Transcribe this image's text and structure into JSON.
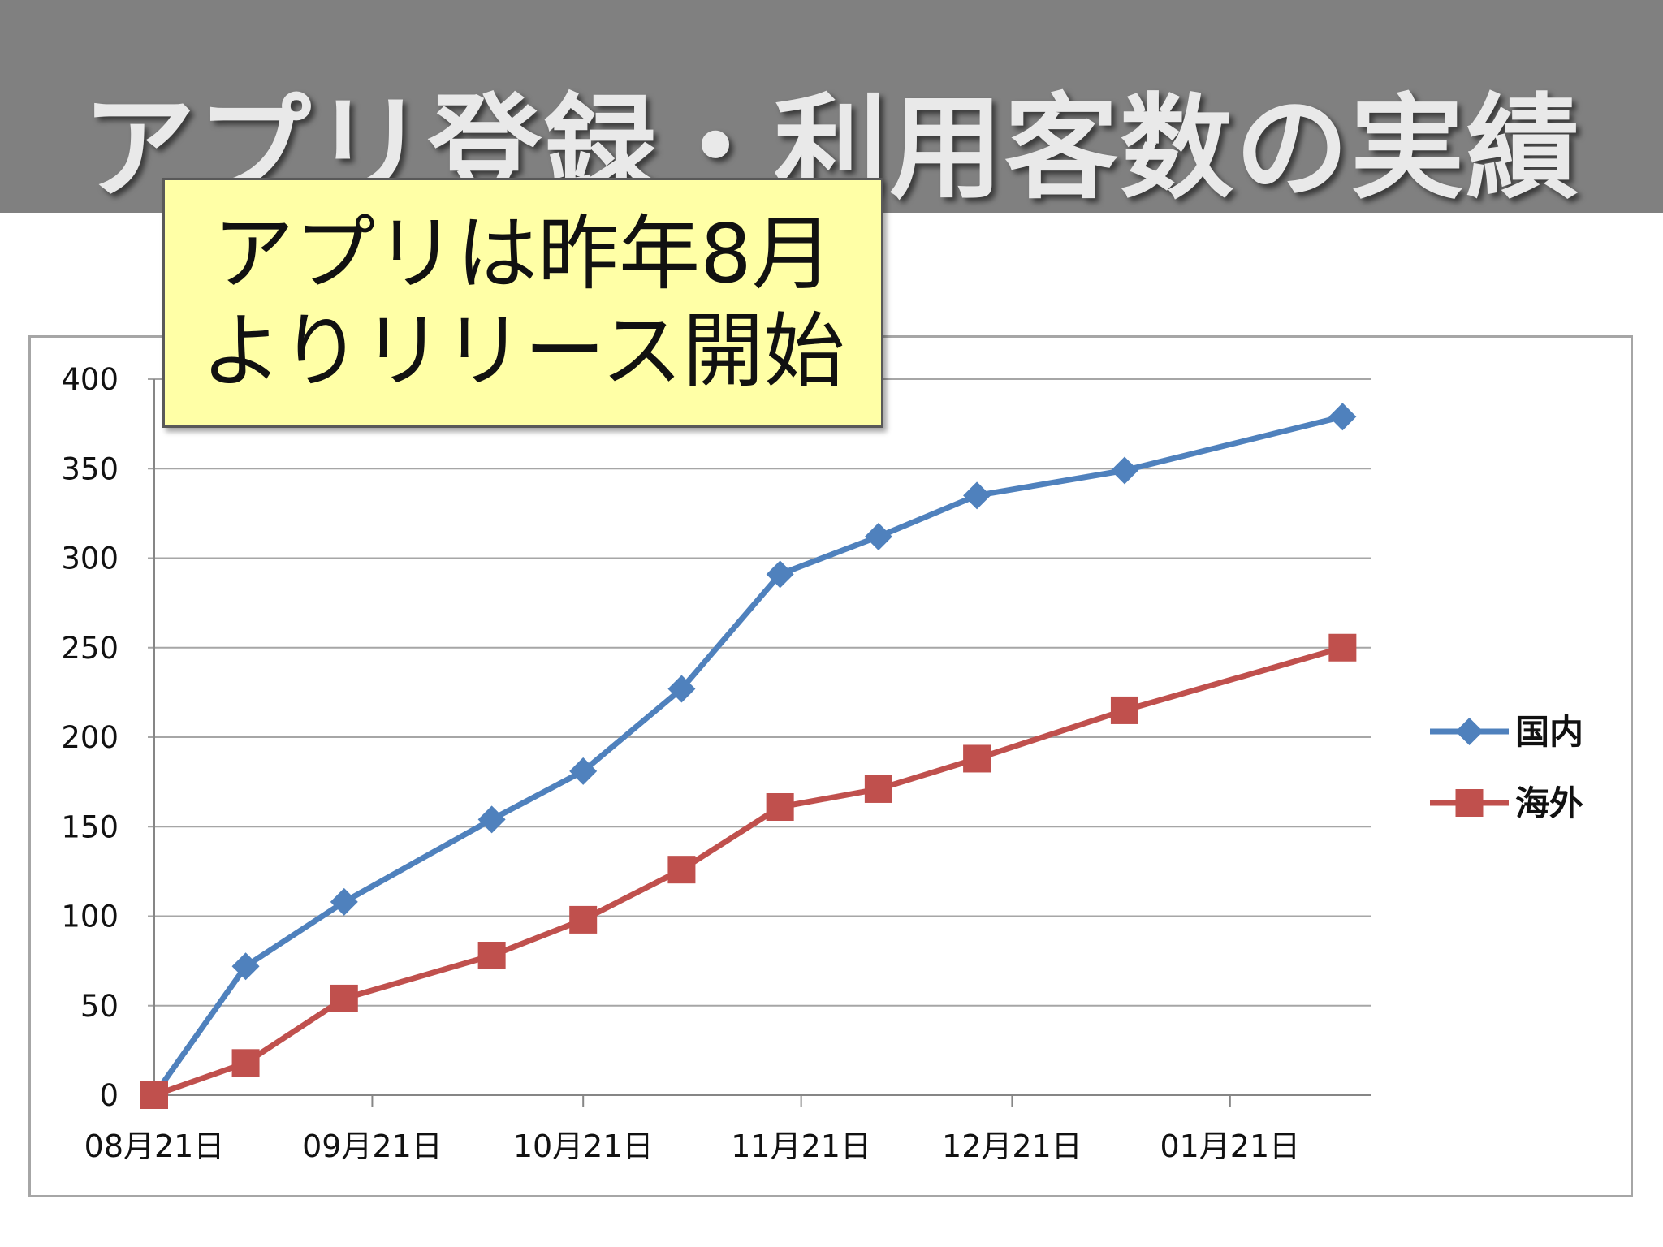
{
  "slide": {
    "title": "アプリ登録・利用客数の実績",
    "callout_line1": "アプリは昨年8月",
    "callout_line2": "よりリリース開始"
  },
  "colors": {
    "title_band": "#808080",
    "title_text": "#e9e9e9",
    "callout_bg": "#ffffa6",
    "domestic": "#4f81bd",
    "overseas": "#c0504d",
    "grid": "#a6a6a6"
  },
  "chart_data": {
    "type": "line",
    "title": "",
    "xlabel": "",
    "ylabel": "",
    "ylim": [
      0,
      400
    ],
    "yticks": [
      0,
      50,
      100,
      150,
      200,
      250,
      300,
      350,
      400
    ],
    "xlim": [
      "2012-08-21",
      "2013-02-10"
    ],
    "x_tick_dates": [
      "2012-08-21",
      "2012-09-21",
      "2012-10-21",
      "2012-11-21",
      "2012-12-21",
      "2013-01-21"
    ],
    "x_tick_labels": [
      "08月21日",
      "09月21日",
      "10月21日",
      "11月21日",
      "12月21日",
      "01月21日"
    ],
    "grid": true,
    "legend_position": "right",
    "x": [
      "2012-08-21",
      "2012-09-03",
      "2012-09-17",
      "2012-10-08",
      "2012-10-21",
      "2012-11-04",
      "2012-11-18",
      "2012-12-02",
      "2012-12-16",
      "2013-01-06",
      "2013-02-06"
    ],
    "series": [
      {
        "name": "国内",
        "color": "#4f81bd",
        "marker": "diamond",
        "values": [
          0,
          72,
          108,
          154,
          181,
          227,
          291,
          312,
          335,
          349,
          379
        ]
      },
      {
        "name": "海外",
        "color": "#c0504d",
        "marker": "square",
        "values": [
          0,
          18,
          54,
          78,
          98,
          126,
          161,
          171,
          188,
          215,
          250
        ]
      }
    ]
  }
}
